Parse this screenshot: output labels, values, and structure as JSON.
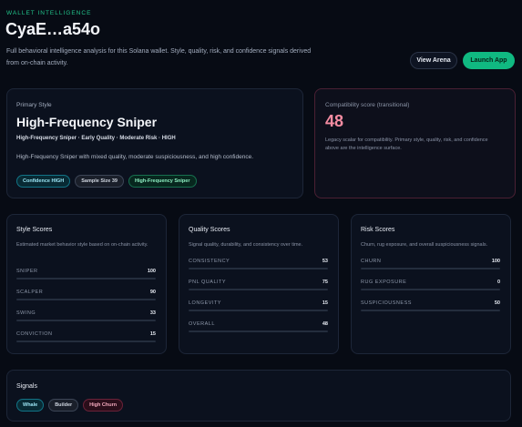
{
  "header": {
    "eyebrow": "WALLET INTELLIGENCE",
    "title": "CyaE…a54o",
    "description": "Full behavioral intelligence analysis for this Solana wallet. Style, quality, risk, and confidence signals derived from on-chain activity.",
    "view_arena": "View Arena",
    "launch_app": "Launch App"
  },
  "primary": {
    "label": "Primary Style",
    "name": "High-Frequency Sniper",
    "subtitle": "High-Frequency Sniper · Early Quality · Moderate Risk · HIGH",
    "description": "High-Frequency Sniper with mixed quality, moderate suspiciousness, and high confidence.",
    "tags": [
      "Confidence HIGH",
      "Sample Size 39",
      "High-Frequency Sniper"
    ]
  },
  "compat": {
    "label": "Compatibility score (transitional)",
    "score": "48",
    "note": "Legacy scalar for compatibility. Primary style, quality, risk, and confidence above are the intelligence surface."
  },
  "style_scores": {
    "title": "Style Scores",
    "description": "Estimated market behavior style based on on-chain activity.",
    "metrics": [
      {
        "label": "SNIPER",
        "value": "100",
        "pct": 1.0,
        "color": "#14b8c8"
      },
      {
        "label": "SCALPER",
        "value": "90",
        "pct": 0.9,
        "color": "#14b8c8"
      },
      {
        "label": "SWING",
        "value": "33",
        "pct": 0.33,
        "color": "#e0284a"
      },
      {
        "label": "CONVICTION",
        "value": "15",
        "pct": 0.15,
        "color": "#e0284a"
      }
    ]
  },
  "quality_scores": {
    "title": "Quality Scores",
    "description": "Signal quality, durability, and consistency over time.",
    "metrics": [
      {
        "label": "CONSISTENCY",
        "value": "53",
        "pct": 0.53,
        "color": "#f08a16"
      },
      {
        "label": "PNL QUALITY",
        "value": "75",
        "pct": 0.75,
        "color": "#14b8c8"
      },
      {
        "label": "LONGEVITY",
        "value": "15",
        "pct": 0.15,
        "color": "#e0284a"
      },
      {
        "label": "OVERALL",
        "value": "48",
        "pct": 0.48,
        "color": "#e0284a"
      }
    ]
  },
  "risk_scores": {
    "title": "Risk Scores",
    "description": "Churn, rug exposure, and overall suspiciousness signals.",
    "metrics": [
      {
        "label": "CHURN",
        "value": "100",
        "pct": 1.0,
        "color": "#14b8c8"
      },
      {
        "label": "RUG EXPOSURE",
        "value": "0",
        "pct": 0.0,
        "color": "#14b8c8"
      },
      {
        "label": "SUSPICIOUSNESS",
        "value": "50",
        "pct": 0.5,
        "color": "#f08a16"
      }
    ]
  },
  "signals": {
    "title": "Signals",
    "tags": [
      "Whale",
      "Builder",
      "High Churn"
    ]
  }
}
